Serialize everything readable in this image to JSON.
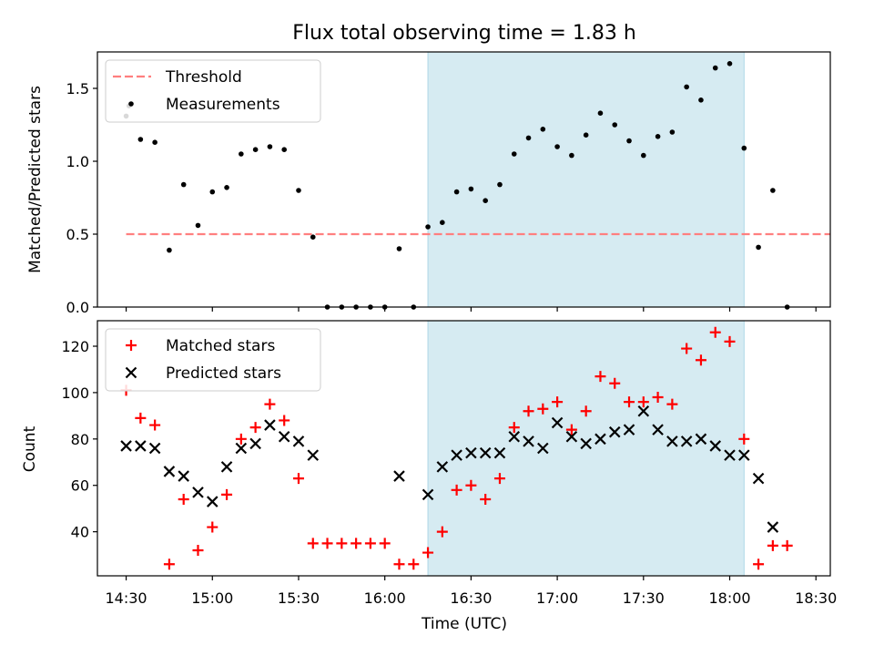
{
  "chart_data": {
    "title": "Flux total observing time = 1.83 h",
    "x_axis": {
      "label": "Time (UTC)",
      "range_minutes": [
        860,
        1115
      ],
      "ticks": [
        {
          "minutes": 870,
          "label": "14:30"
        },
        {
          "minutes": 900,
          "label": "15:00"
        },
        {
          "minutes": 930,
          "label": "15:30"
        },
        {
          "minutes": 960,
          "label": "16:00"
        },
        {
          "minutes": 990,
          "label": "16:30"
        },
        {
          "minutes": 1020,
          "label": "17:00"
        },
        {
          "minutes": 1050,
          "label": "17:30"
        },
        {
          "minutes": 1080,
          "label": "18:00"
        },
        {
          "minutes": 1110,
          "label": "18:30"
        }
      ]
    },
    "observing_window_minutes": [
      975,
      1085
    ],
    "observing_window_color": "#add8e6",
    "panels": [
      {
        "id": "ratio",
        "type": "scatter",
        "ylabel": "Matched/Predicted stars",
        "ylim": [
          0,
          1.75
        ],
        "yticks": [
          {
            "value": 0.0,
            "label": "0.0"
          },
          {
            "value": 0.5,
            "label": "0.5"
          },
          {
            "value": 1.0,
            "label": "1.0"
          },
          {
            "value": 1.5,
            "label": "1.5"
          }
        ],
        "legend_position": "top-left",
        "threshold": {
          "name": "Threshold",
          "value": 0.5,
          "x_range": [
            870,
            1115
          ],
          "color": "#ff7f7f",
          "style": "dashed"
        },
        "series": [
          {
            "name": "Measurements",
            "marker": "dot",
            "color": "#000000",
            "x": [
              870,
              871,
              875,
              880,
              885,
              890,
              895,
              900,
              905,
              910,
              915,
              920,
              925,
              930,
              935,
              940,
              945,
              950,
              955,
              960,
              965,
              970,
              975,
              980,
              985,
              990,
              995,
              1000,
              1005,
              1010,
              1015,
              1020,
              1025,
              1030,
              1035,
              1040,
              1045,
              1050,
              1055,
              1060,
              1065,
              1070,
              1075,
              1080,
              1085,
              1090,
              1095,
              1100
            ],
            "y": [
              1.31,
              1.38,
              1.15,
              1.13,
              0.39,
              0.84,
              0.56,
              0.79,
              0.82,
              1.05,
              1.08,
              1.1,
              1.08,
              0.8,
              0.48,
              0.0,
              0.0,
              0.0,
              0.0,
              0.0,
              0.4,
              0.0,
              0.55,
              0.58,
              0.79,
              0.81,
              0.73,
              0.84,
              1.05,
              1.16,
              1.22,
              1.1,
              1.04,
              1.18,
              1.33,
              1.25,
              1.14,
              1.04,
              1.17,
              1.2,
              1.51,
              1.42,
              1.64,
              1.67,
              1.09,
              0.41,
              0.8,
              0.0
            ]
          }
        ]
      },
      {
        "id": "counts",
        "type": "scatter",
        "ylabel": "Count",
        "ylim": [
          21,
          131
        ],
        "yticks": [
          {
            "value": 40,
            "label": "40"
          },
          {
            "value": 60,
            "label": "60"
          },
          {
            "value": 80,
            "label": "80"
          },
          {
            "value": 100,
            "label": "100"
          },
          {
            "value": 120,
            "label": "120"
          }
        ],
        "legend_position": "top-left",
        "series": [
          {
            "name": "Matched stars",
            "marker": "plus",
            "color": "#ff0000",
            "x": [
              870,
              875,
              880,
              885,
              890,
              895,
              900,
              905,
              910,
              915,
              920,
              925,
              930,
              935,
              940,
              945,
              950,
              955,
              960,
              965,
              970,
              975,
              980,
              985,
              990,
              995,
              1000,
              1005,
              1010,
              1015,
              1020,
              1025,
              1030,
              1035,
              1040,
              1045,
              1050,
              1055,
              1060,
              1065,
              1070,
              1075,
              1080,
              1085,
              1090,
              1095,
              1100
            ],
            "y": [
              101,
              89,
              86,
              26,
              54,
              32,
              42,
              56,
              80,
              85,
              95,
              88,
              63,
              35,
              35,
              35,
              35,
              35,
              35,
              26,
              26,
              31,
              40,
              58,
              60,
              54,
              63,
              85,
              92,
              93,
              96,
              84,
              92,
              107,
              104,
              96,
              96,
              98,
              95,
              119,
              114,
              126,
              122,
              80,
              26,
              34,
              34
            ]
          },
          {
            "name": "Predicted stars",
            "marker": "x",
            "color": "#000000",
            "x": [
              870,
              875,
              880,
              885,
              890,
              895,
              900,
              905,
              910,
              915,
              920,
              925,
              930,
              935,
              965,
              975,
              980,
              985,
              990,
              995,
              1000,
              1005,
              1010,
              1015,
              1020,
              1025,
              1030,
              1035,
              1040,
              1045,
              1050,
              1055,
              1060,
              1065,
              1070,
              1075,
              1080,
              1085,
              1090,
              1095
            ],
            "y": [
              77,
              77,
              76,
              66,
              64,
              57,
              53,
              68,
              76,
              78,
              86,
              81,
              79,
              73,
              64,
              56,
              68,
              73,
              74,
              74,
              74,
              81,
              79,
              76,
              87,
              81,
              78,
              80,
              83,
              84,
              92,
              84,
              79,
              79,
              80,
              77,
              73,
              73,
              63,
              42
            ]
          }
        ]
      }
    ]
  }
}
